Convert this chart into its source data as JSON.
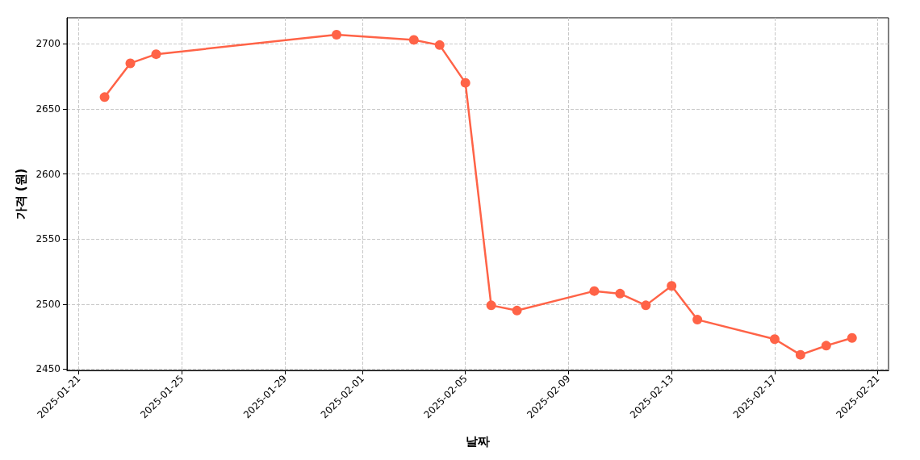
{
  "chart_data": {
    "type": "line",
    "xlabel": "날짜",
    "ylabel": "가격 (원)",
    "x": [
      "2025-01-22",
      "2025-01-23",
      "2025-01-24",
      "2025-01-31",
      "2025-02-03",
      "2025-02-04",
      "2025-02-05",
      "2025-02-06",
      "2025-02-07",
      "2025-02-10",
      "2025-02-11",
      "2025-02-12",
      "2025-02-13",
      "2025-02-14",
      "2025-02-17",
      "2025-02-18",
      "2025-02-19",
      "2025-02-20"
    ],
    "series": [
      {
        "color": "#ff6347",
        "values": [
          2659,
          2685,
          2692,
          2707,
          2703,
          2699,
          2670,
          2499,
          2495,
          2510,
          2508,
          2499,
          2514,
          2488,
          2473,
          2461,
          2468,
          2474
        ]
      }
    ],
    "xlim": [
      "2025-01-20T13:00",
      "2025-02-21T10:00"
    ],
    "xticks": [
      "2025-01-21",
      "2025-01-25",
      "2025-01-29",
      "2025-02-01",
      "2025-02-05",
      "2025-02-09",
      "2025-02-13",
      "2025-02-17",
      "2025-02-21"
    ],
    "ylim": [
      2449,
      2720
    ],
    "yticks": [
      2450,
      2500,
      2550,
      2600,
      2650,
      2700
    ],
    "grid": true,
    "marker": "circle",
    "line_style": "solid"
  }
}
